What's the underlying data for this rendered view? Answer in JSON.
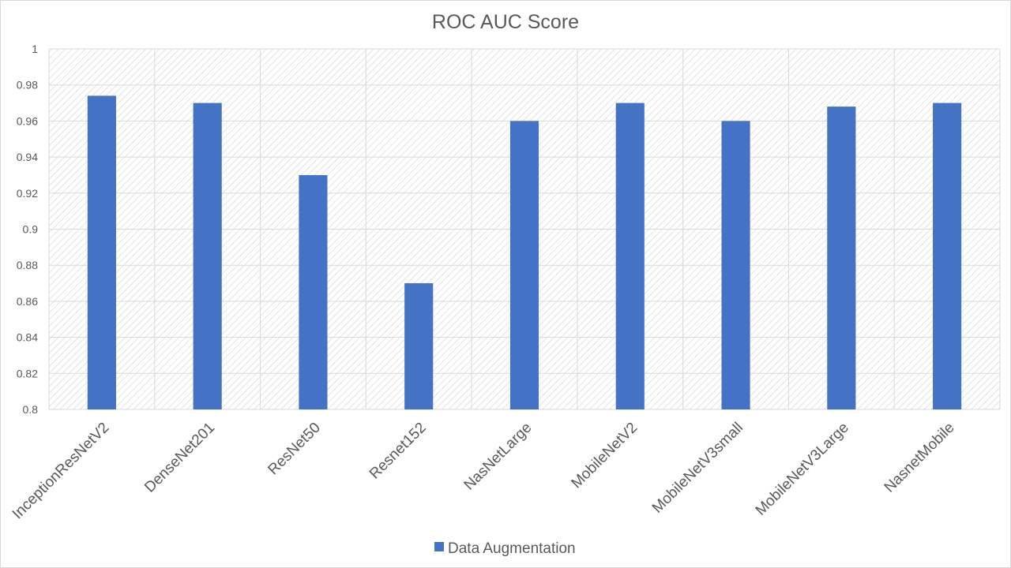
{
  "chart_data": {
    "type": "bar",
    "title": "ROC AUC Score",
    "categories": [
      "InceptionResNetV2",
      "DenseNet201",
      "ResNet50",
      "Resnet152",
      "NasNetLarge",
      "MobileNetV2",
      "MobileNetV3small",
      "MobileNetV3Large",
      "NasnetMobile"
    ],
    "series": [
      {
        "name": "Data Augmentation",
        "values": [
          0.974,
          0.97,
          0.93,
          0.87,
          0.96,
          0.97,
          0.96,
          0.968,
          0.97
        ]
      }
    ],
    "ylim": [
      0.8,
      1.0
    ],
    "yticks": [
      "0.8",
      "0.82",
      "0.84",
      "0.86",
      "0.88",
      "0.9",
      "0.92",
      "0.94",
      "0.96",
      "0.98",
      "1"
    ],
    "grid": true,
    "legend_position": "bottom",
    "colors": {
      "bar": "#4472c4",
      "grid": "#d9d9d9",
      "text": "#595959",
      "plot_bg": "#f2f2f2"
    }
  }
}
